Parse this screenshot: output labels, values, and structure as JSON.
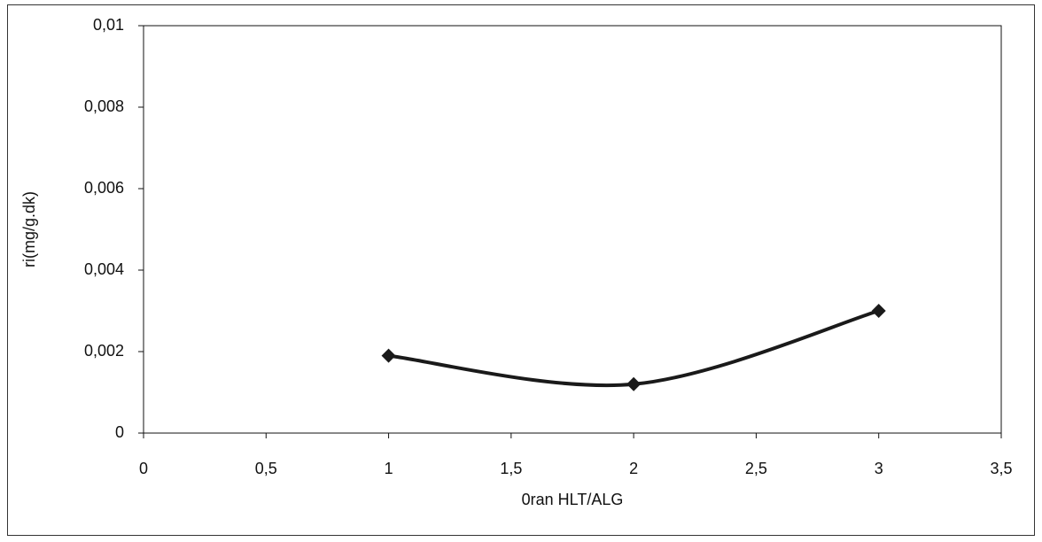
{
  "chart_data": {
    "type": "scatter",
    "x_label": "0ran HLT/ALG",
    "y_label": "ri(mg/g.dk)",
    "series": [
      {
        "color": "#1a1a1a",
        "x": [
          1,
          2,
          3
        ],
        "values": [
          0.0019,
          0.0012,
          0.003
        ]
      }
    ],
    "smooth": true,
    "xlim": [
      0,
      3.5
    ],
    "xticks": [
      0,
      {
        "value": 0.5,
        "label": "0,5"
      },
      1,
      {
        "value": 1.5,
        "label": "1,5"
      },
      2,
      {
        "value": 2.5,
        "label": "2,5"
      },
      3,
      {
        "value": 3.5,
        "label": "3,5"
      }
    ],
    "ylim": [
      0,
      0.01
    ],
    "yticks": [
      0,
      {
        "value": 0.002,
        "label": "0,002"
      },
      {
        "value": 0.004,
        "label": "0,004"
      },
      {
        "value": 0.006,
        "label": "0,006"
      },
      {
        "value": 0.008,
        "label": "0,008"
      },
      {
        "value": 0.01,
        "label": "0,01"
      }
    ],
    "grid": false
  }
}
